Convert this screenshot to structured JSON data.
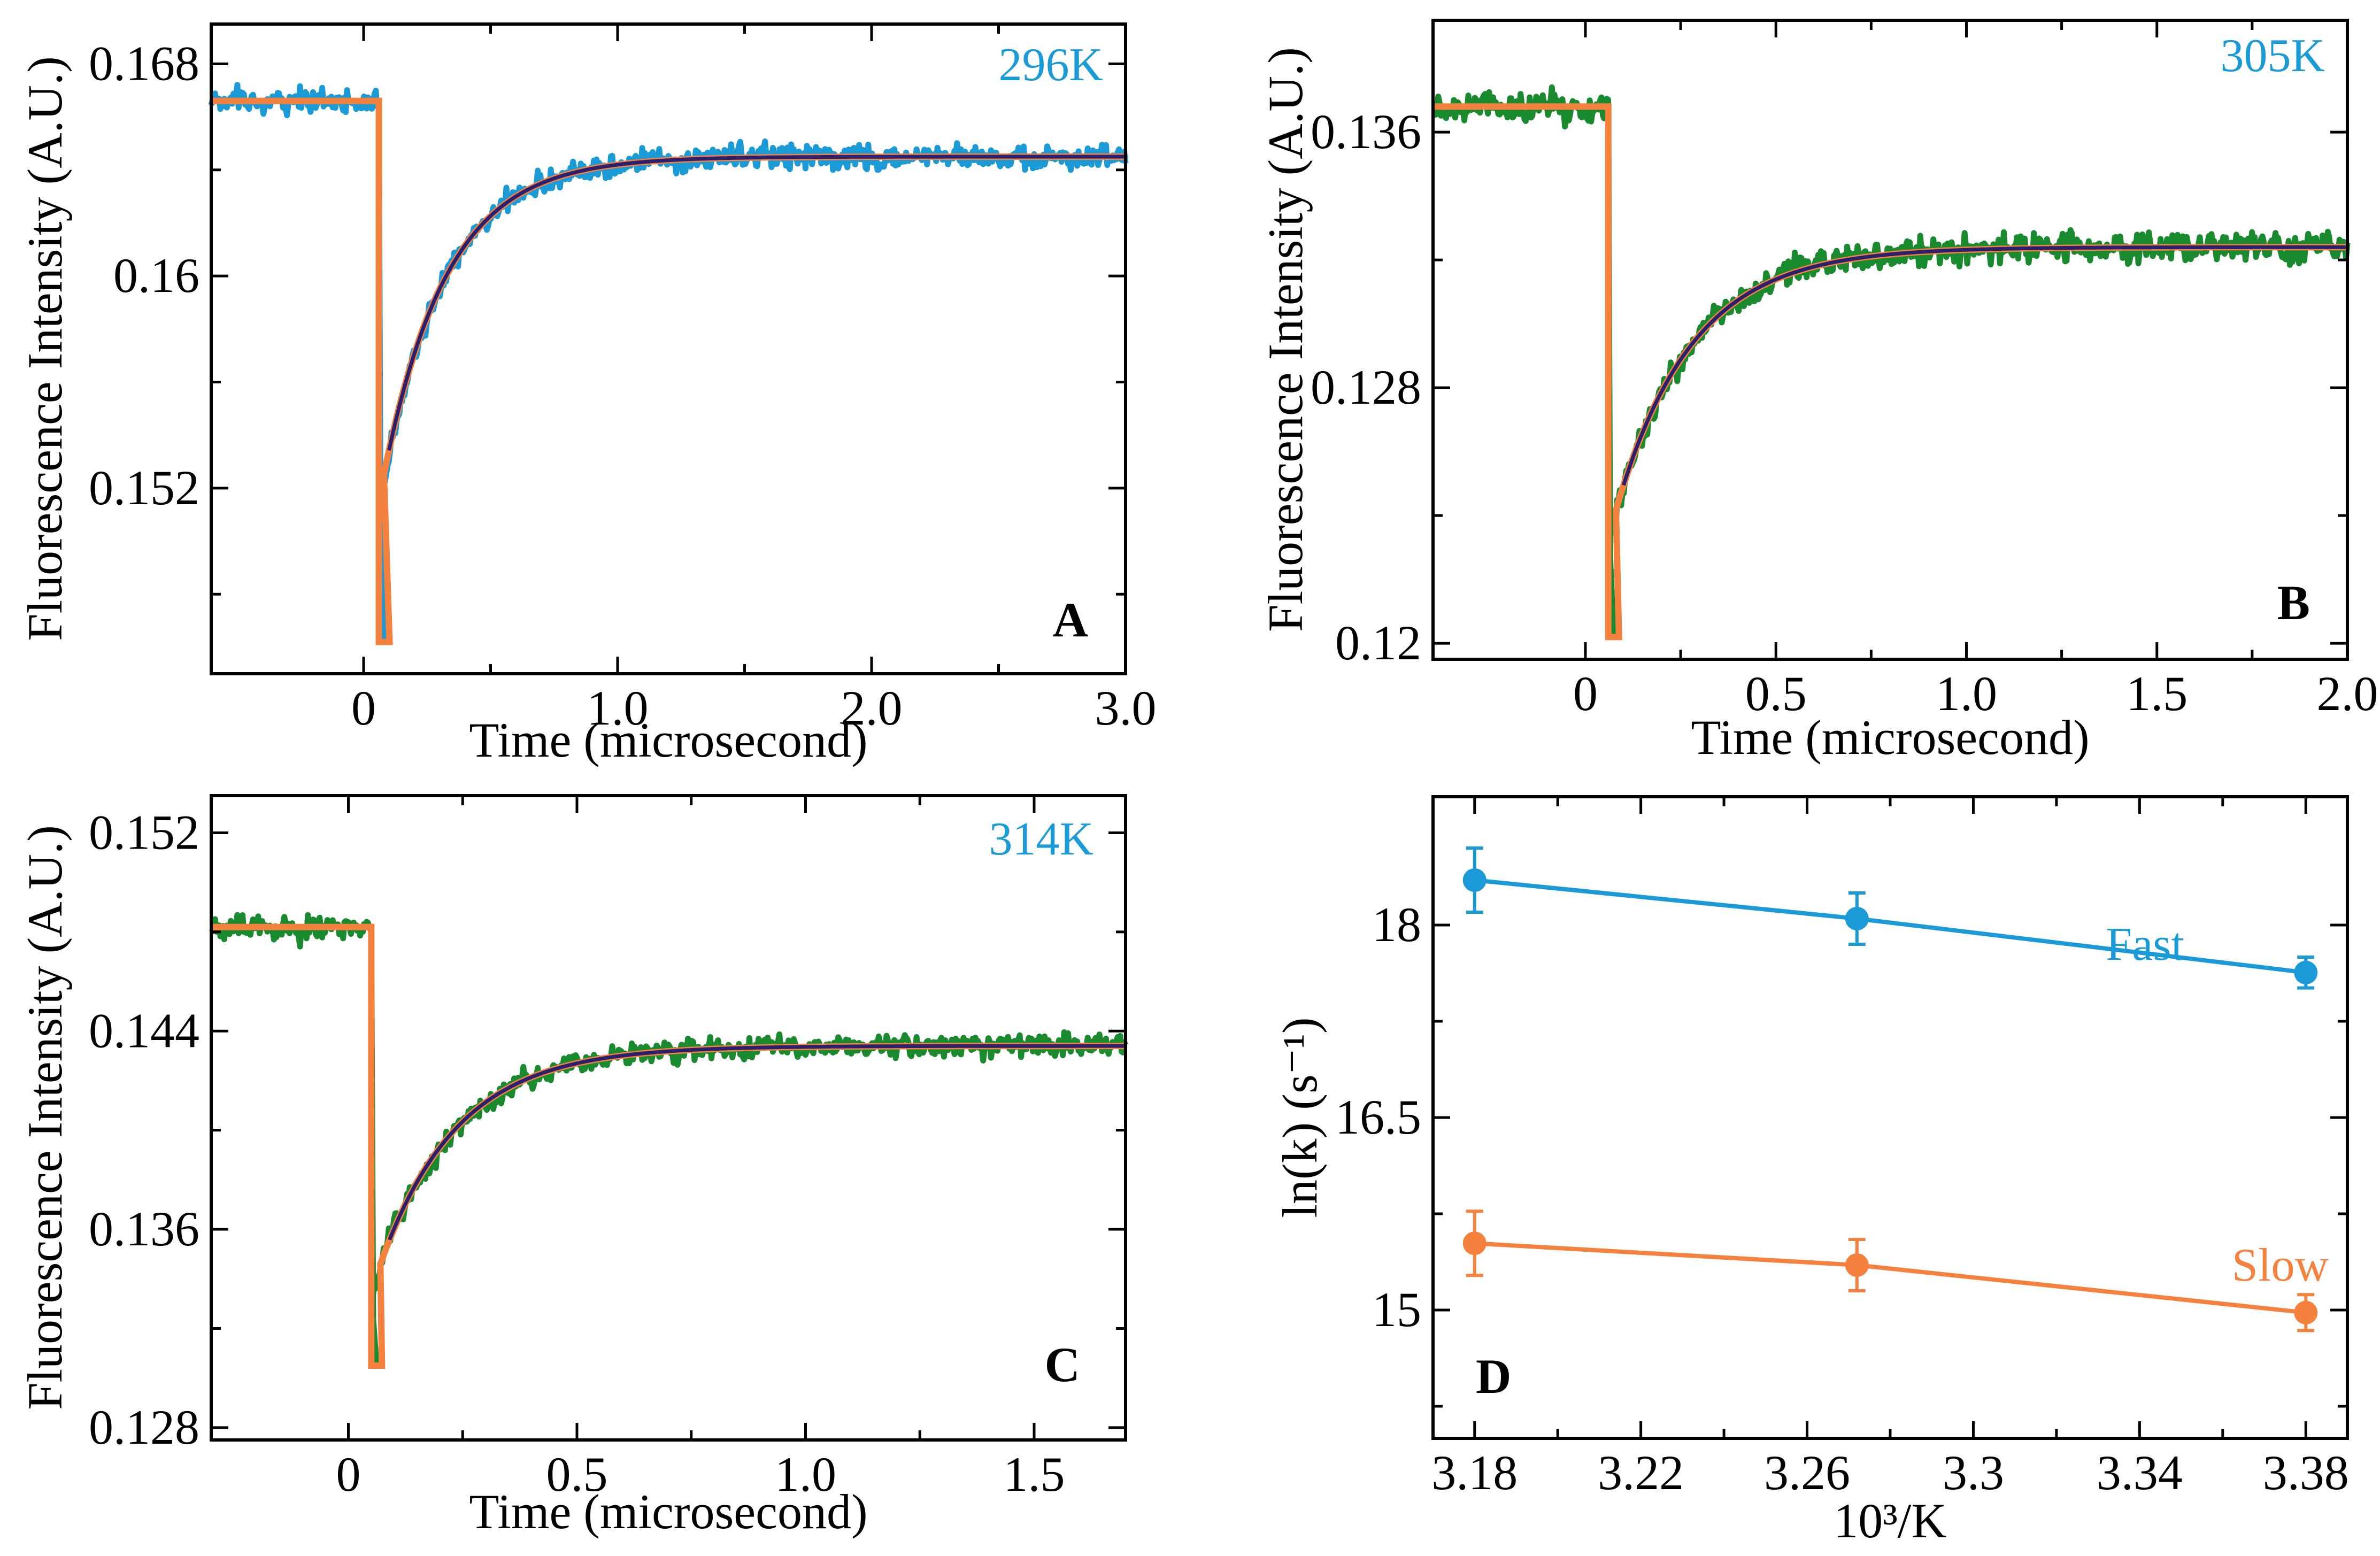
{
  "chart_data": [
    {
      "id": "A",
      "type": "line",
      "panel_label": "A",
      "temperature_label": "296K",
      "xlabel": "Time (microsecond)",
      "ylabel": "Fluorescence Intensity (A.U.)",
      "xlim": [
        -0.6,
        3.0
      ],
      "ylim": [
        0.145,
        0.1695
      ],
      "x_tick_labels": [
        "0",
        "1.0",
        "2.0",
        "3.0"
      ],
      "x_tick_values": [
        0,
        1,
        2,
        3
      ],
      "x_minor_ticks": [
        0.5,
        1.5,
        2.5
      ],
      "y_tick_labels": [
        "0.168",
        "0.16",
        "0.152"
      ],
      "y_tick_values": [
        0.168,
        0.16,
        0.152
      ],
      "y_minor_ticks": [
        0.164,
        0.156,
        0.148
      ],
      "series": [
        {
          "name": "data",
          "color": "#1a9ad6",
          "kind": "noisy"
        },
        {
          "name": "step fit",
          "color": "#f5813f",
          "kind": "fit"
        },
        {
          "name": "exponential fit",
          "color": "#2b1f6e",
          "kind": "exp"
        }
      ],
      "model": {
        "baseline": 0.1666,
        "t_jump": 0.06,
        "min": 0.1462,
        "fit_start": 0.1515,
        "plateau": 0.1645,
        "tau": 0.25,
        "noise": 0.00028
      }
    },
    {
      "id": "B",
      "type": "line",
      "panel_label": "B",
      "temperature_label": "305K",
      "xlabel": "Time (microsecond)",
      "ylabel": "Fluorescence Intensity (A.U.)",
      "xlim": [
        -0.4,
        2.0
      ],
      "ylim": [
        0.1195,
        0.1395
      ],
      "x_tick_labels": [
        "0",
        "0.5",
        "1.0",
        "1.5",
        "2.0"
      ],
      "x_tick_values": [
        0,
        0.5,
        1,
        1.5,
        2
      ],
      "x_minor_ticks": [
        0.25,
        0.75,
        1.25,
        1.75
      ],
      "y_tick_labels": [
        "0.136",
        "0.128",
        "0.12"
      ],
      "y_tick_values": [
        0.136,
        0.128,
        0.12
      ],
      "y_minor_ticks": [
        0.132,
        0.124
      ],
      "series": [
        {
          "name": "data",
          "color": "#1a8a2e",
          "kind": "noisy"
        },
        {
          "name": "step fit",
          "color": "#f5813f",
          "kind": "fit"
        },
        {
          "name": "exponential fit",
          "color": "#2b1f6e",
          "kind": "exp"
        }
      ],
      "model": {
        "baseline": 0.1368,
        "t_jump": 0.06,
        "min": 0.1202,
        "fit_start": 0.1233,
        "plateau": 0.1324,
        "tau": 0.2,
        "noise": 0.00028
      }
    },
    {
      "id": "C",
      "type": "line",
      "panel_label": "C",
      "temperature_label": "314K",
      "xlabel": "Time (microsecond)",
      "ylabel": "Fluorescence Intensity (A.U.)",
      "xlim": [
        -0.3,
        1.7
      ],
      "ylim": [
        0.1275,
        0.1535
      ],
      "x_tick_labels": [
        "0",
        "0.5",
        "1.0",
        "1.5"
      ],
      "x_tick_values": [
        0,
        0.5,
        1,
        1.5
      ],
      "x_minor_ticks": [
        0.25,
        0.75,
        1.25
      ],
      "y_tick_labels": [
        "0.152",
        "0.144",
        "0.136",
        "0.128"
      ],
      "y_tick_values": [
        0.152,
        0.144,
        0.136,
        0.128
      ],
      "y_minor_ticks": [
        0.148,
        0.14,
        0.132
      ],
      "series": [
        {
          "name": "data",
          "color": "#1a8a2e",
          "kind": "noisy"
        },
        {
          "name": "step fit",
          "color": "#f5813f",
          "kind": "fit"
        },
        {
          "name": "exponential fit",
          "color": "#2b1f6e",
          "kind": "exp"
        }
      ],
      "model": {
        "baseline": 0.1482,
        "t_jump": 0.05,
        "min": 0.1305,
        "fit_start": 0.1335,
        "plateau": 0.1434,
        "tau": 0.17,
        "noise": 0.00028
      }
    },
    {
      "id": "D",
      "type": "line",
      "panel_label": "D",
      "xlabel": "10³/K",
      "ylabel": "ln(k) (s⁻¹)",
      "xlim": [
        3.17,
        3.39
      ],
      "ylim": [
        14.0,
        19.0
      ],
      "x_tick_labels": [
        "3.18",
        "3.22",
        "3.26",
        "3.3",
        "3.34",
        "3.38"
      ],
      "x_tick_values": [
        3.18,
        3.22,
        3.26,
        3.3,
        3.34,
        3.38
      ],
      "x_minor_ticks": [
        3.2,
        3.24,
        3.28,
        3.32,
        3.36
      ],
      "y_tick_labels": [
        "18",
        "16.5",
        "15"
      ],
      "y_tick_values": [
        18,
        16.5,
        15
      ],
      "y_minor_ticks": [
        17.25,
        15.75,
        14.25
      ],
      "series": [
        {
          "name": "Fast",
          "color": "#1a9ad6",
          "x": [
            3.18,
            3.272,
            3.38
          ],
          "y": [
            18.35,
            18.05,
            17.63
          ],
          "err": [
            0.25,
            0.2,
            0.12
          ]
        },
        {
          "name": "Slow",
          "color": "#f5813f",
          "x": [
            3.18,
            3.272,
            3.38
          ],
          "y": [
            15.52,
            15.35,
            14.98
          ],
          "err": [
            0.25,
            0.2,
            0.14
          ]
        }
      ]
    }
  ]
}
